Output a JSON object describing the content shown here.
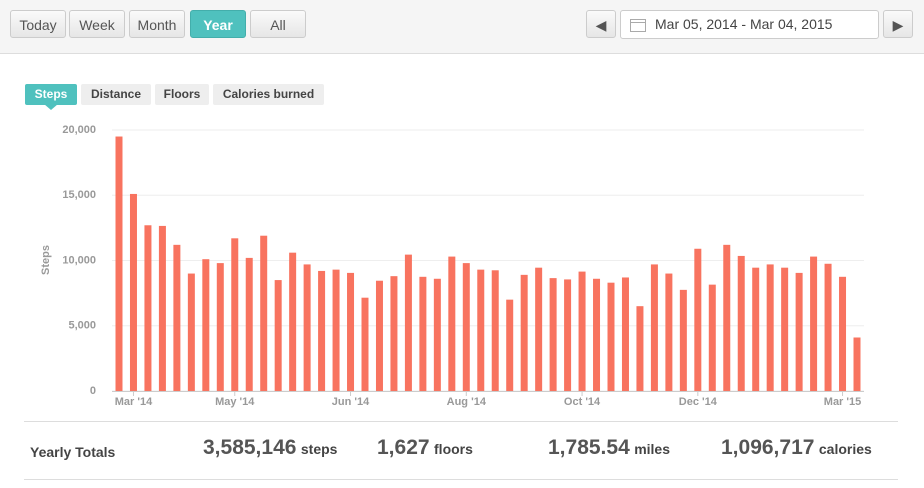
{
  "toolbar": {
    "buttons": [
      "Today",
      "Week",
      "Month",
      "Year",
      "All"
    ],
    "active": 3,
    "date_range": "Mar 05, 2014 - Mar 04, 2015"
  },
  "tabs": {
    "items": [
      "Steps",
      "Distance",
      "Floors",
      "Calories burned"
    ],
    "active": 0
  },
  "chart_data": {
    "type": "bar",
    "y_label": "Steps",
    "color": "#f8735f",
    "grid": true,
    "categories": [
      null,
      "Mar '14",
      null,
      null,
      null,
      null,
      null,
      null,
      "May '14",
      null,
      null,
      null,
      null,
      null,
      null,
      null,
      "Jun '14",
      null,
      null,
      null,
      null,
      null,
      null,
      null,
      "Aug '14",
      null,
      null,
      null,
      null,
      null,
      null,
      null,
      "Oct '14",
      null,
      null,
      null,
      null,
      null,
      null,
      null,
      "Dec '14",
      null,
      null,
      null,
      null,
      null,
      null,
      null,
      null,
      null,
      "Mar '15",
      null
    ],
    "values": [
      19500,
      15100,
      12700,
      12650,
      11200,
      9000,
      10100,
      9800,
      11700,
      10200,
      11900,
      8500,
      10600,
      9700,
      9200,
      9300,
      9050,
      7150,
      8450,
      8800,
      10450,
      8750,
      8600,
      10300,
      9800,
      9300,
      9250,
      7000,
      8900,
      9450,
      8650,
      8550,
      9150,
      8600,
      8300,
      8700,
      6500,
      9700,
      9000,
      7750,
      10900,
      8150,
      11200,
      10350,
      9450,
      9700,
      9450,
      9050,
      10300,
      9750,
      8750,
      4100
    ],
    "ylim": [
      0,
      20000
    ],
    "yticks": [
      0,
      {
        "value": 5000,
        "label": "5,000"
      },
      {
        "value": 10000,
        "label": "10,000"
      },
      {
        "value": 15000,
        "label": "15,000"
      },
      {
        "value": 20000,
        "label": "20,000"
      }
    ]
  },
  "totals": {
    "label": "Yearly Totals",
    "items": [
      {
        "value": "3,585,146",
        "unit": "steps"
      },
      {
        "value": "1,627",
        "unit": "floors"
      },
      {
        "value": "1,785.54",
        "unit": "miles"
      },
      {
        "value": "1,096,717",
        "unit": "calories"
      }
    ]
  }
}
